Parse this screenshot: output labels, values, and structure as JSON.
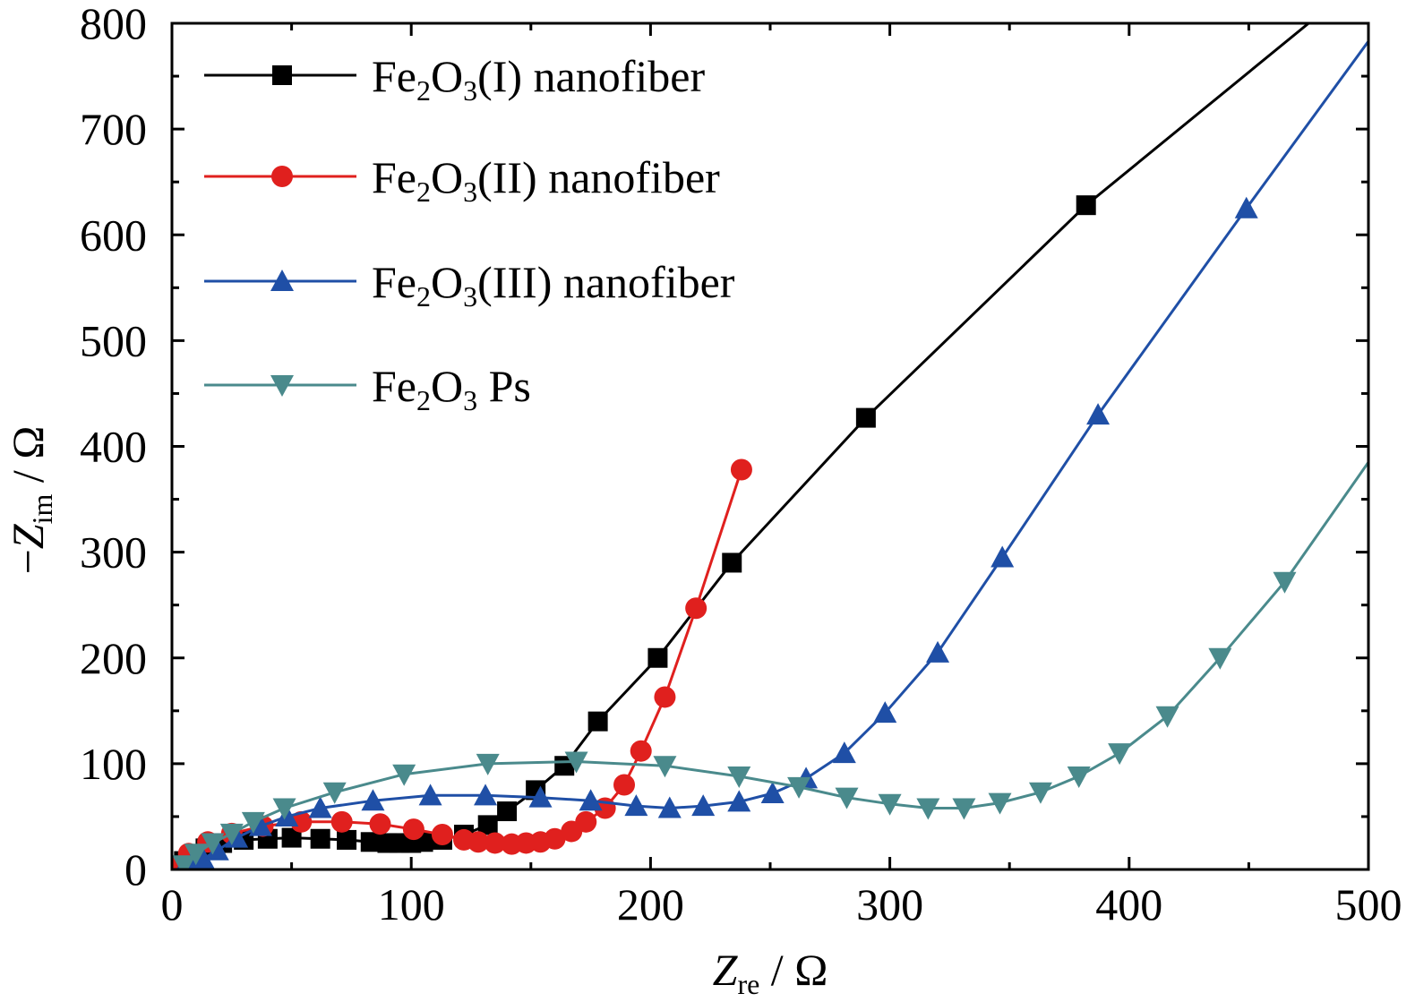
{
  "chart_data": {
    "type": "line",
    "title": "",
    "xlabel": {
      "symbol": "Z",
      "subscript": "re",
      "unit": " / Ω"
    },
    "ylabel": {
      "prefix": "−",
      "symbol": "Z",
      "subscript": "im",
      "unit": " / Ω"
    },
    "xlim": [
      0,
      500
    ],
    "ylim": [
      0,
      800
    ],
    "x_ticks": [
      0,
      100,
      200,
      300,
      400,
      500
    ],
    "y_ticks": [
      0,
      100,
      200,
      300,
      400,
      500,
      600,
      700,
      800
    ],
    "x_tick_labels": [
      "0",
      "100",
      "200",
      "300",
      "400",
      "500"
    ],
    "y_tick_labels": [
      "0",
      "100",
      "200",
      "300",
      "400",
      "500",
      "600",
      "700",
      "800"
    ],
    "grid": false,
    "legend_position": "top-left",
    "series": [
      {
        "name": "Fe2O3(I) nanofiber",
        "legend": {
          "base": "Fe",
          "sub1": "2",
          "mid": "O",
          "sub2": "3",
          "rest": "(I) nanofiber"
        },
        "color": "#000000",
        "marker": "square",
        "points": [
          [
            2,
            2
          ],
          [
            5,
            8
          ],
          [
            9,
            14
          ],
          [
            14,
            20
          ],
          [
            21,
            25
          ],
          [
            30,
            28
          ],
          [
            40,
            29
          ],
          [
            50,
            30
          ],
          [
            62,
            29
          ],
          [
            73,
            28
          ],
          [
            83,
            26
          ],
          [
            90,
            25
          ],
          [
            95,
            25
          ],
          [
            100,
            25
          ],
          [
            105,
            26
          ],
          [
            113,
            28
          ],
          [
            122,
            33
          ],
          [
            132,
            42
          ],
          [
            140,
            55
          ],
          [
            152,
            75
          ],
          [
            164,
            98
          ],
          [
            178,
            140
          ],
          [
            203,
            200
          ],
          [
            234,
            290
          ],
          [
            290,
            427
          ],
          [
            382,
            628
          ],
          [
            475,
            800
          ]
        ],
        "markers": [
          [
            2,
            2
          ],
          [
            5,
            8
          ],
          [
            9,
            14
          ],
          [
            14,
            20
          ],
          [
            21,
            25
          ],
          [
            30,
            28
          ],
          [
            40,
            29
          ],
          [
            50,
            30
          ],
          [
            62,
            29
          ],
          [
            73,
            28
          ],
          [
            83,
            26
          ],
          [
            90,
            25
          ],
          [
            95,
            25
          ],
          [
            100,
            25
          ],
          [
            105,
            26
          ],
          [
            113,
            28
          ],
          [
            122,
            33
          ],
          [
            132,
            42
          ],
          [
            140,
            55
          ],
          [
            152,
            75
          ],
          [
            164,
            98
          ],
          [
            178,
            140
          ],
          [
            203,
            200
          ],
          [
            234,
            290
          ],
          [
            290,
            427
          ],
          [
            382,
            628
          ]
        ]
      },
      {
        "name": "Fe2O3(II) nanofiber",
        "legend": {
          "base": "Fe",
          "sub1": "2",
          "mid": "O",
          "sub2": "3",
          "rest": "(II) nanofiber"
        },
        "color": "#e0201e",
        "marker": "circle",
        "points": [
          [
            2,
            2
          ],
          [
            7,
            15
          ],
          [
            15,
            26
          ],
          [
            25,
            34
          ],
          [
            38,
            41
          ],
          [
            54,
            45
          ],
          [
            71,
            45
          ],
          [
            87,
            43
          ],
          [
            101,
            38
          ],
          [
            113,
            33
          ],
          [
            122,
            28
          ],
          [
            128,
            26
          ],
          [
            135,
            25
          ],
          [
            142,
            24
          ],
          [
            148,
            25
          ],
          [
            154,
            26
          ],
          [
            160,
            29
          ],
          [
            167,
            36
          ],
          [
            173,
            45
          ],
          [
            181,
            58
          ],
          [
            189,
            80
          ],
          [
            196,
            112
          ],
          [
            206,
            163
          ],
          [
            219,
            247
          ],
          [
            238,
            378
          ]
        ],
        "markers": [
          [
            2,
            2
          ],
          [
            7,
            15
          ],
          [
            15,
            26
          ],
          [
            25,
            34
          ],
          [
            38,
            41
          ],
          [
            54,
            45
          ],
          [
            71,
            45
          ],
          [
            87,
            43
          ],
          [
            101,
            38
          ],
          [
            113,
            33
          ],
          [
            122,
            28
          ],
          [
            128,
            26
          ],
          [
            135,
            25
          ],
          [
            142,
            24
          ],
          [
            148,
            25
          ],
          [
            154,
            26
          ],
          [
            160,
            29
          ],
          [
            167,
            36
          ],
          [
            173,
            45
          ],
          [
            181,
            58
          ],
          [
            189,
            80
          ],
          [
            196,
            112
          ],
          [
            206,
            163
          ],
          [
            219,
            247
          ],
          [
            238,
            378
          ]
        ]
      },
      {
        "name": "Fe2O3(III) nanofiber",
        "legend": {
          "base": "Fe",
          "sub1": "2",
          "mid": "O",
          "sub2": "3",
          "rest": "(III) nanofiber"
        },
        "color": "#1f4fa6",
        "marker": "triangle-up",
        "points": [
          [
            5,
            2
          ],
          [
            8,
            5
          ],
          [
            13,
            10
          ],
          [
            19,
            18
          ],
          [
            27,
            30
          ],
          [
            37,
            41
          ],
          [
            48,
            50
          ],
          [
            62,
            58
          ],
          [
            84,
            65
          ],
          [
            108,
            70
          ],
          [
            131,
            70
          ],
          [
            154,
            68
          ],
          [
            175,
            65
          ],
          [
            194,
            60
          ],
          [
            208,
            58
          ],
          [
            222,
            60
          ],
          [
            237,
            64
          ],
          [
            251,
            72
          ],
          [
            265,
            86
          ],
          [
            281,
            110
          ],
          [
            298,
            148
          ],
          [
            320,
            205
          ],
          [
            347,
            295
          ],
          [
            387,
            430
          ],
          [
            449,
            625
          ],
          [
            500,
            783
          ]
        ],
        "markers": [
          [
            5,
            2
          ],
          [
            8,
            5
          ],
          [
            13,
            10
          ],
          [
            19,
            18
          ],
          [
            27,
            30
          ],
          [
            37,
            41
          ],
          [
            48,
            50
          ],
          [
            62,
            58
          ],
          [
            84,
            65
          ],
          [
            108,
            70
          ],
          [
            131,
            70
          ],
          [
            154,
            68
          ],
          [
            175,
            65
          ],
          [
            194,
            60
          ],
          [
            208,
            58
          ],
          [
            222,
            60
          ],
          [
            237,
            64
          ],
          [
            251,
            72
          ],
          [
            265,
            86
          ],
          [
            281,
            110
          ],
          [
            298,
            148
          ],
          [
            320,
            205
          ],
          [
            347,
            295
          ],
          [
            387,
            430
          ],
          [
            449,
            625
          ]
        ]
      },
      {
        "name": "Fe2O3 Ps",
        "legend": {
          "base": "Fe",
          "sub1": "2",
          "mid": "O",
          "sub2": "3",
          "rest": " Ps"
        },
        "color": "#4a8a8c",
        "marker": "triangle-down",
        "points": [
          [
            5,
            4
          ],
          [
            10,
            15
          ],
          [
            17,
            25
          ],
          [
            25,
            34
          ],
          [
            34,
            45
          ],
          [
            47,
            58
          ],
          [
            68,
            73
          ],
          [
            97,
            90
          ],
          [
            132,
            100
          ],
          [
            169,
            102
          ],
          [
            206,
            98
          ],
          [
            237,
            88
          ],
          [
            262,
            78
          ],
          [
            282,
            68
          ],
          [
            300,
            62
          ],
          [
            316,
            58
          ],
          [
            331,
            58
          ],
          [
            346,
            63
          ],
          [
            363,
            73
          ],
          [
            379,
            88
          ],
          [
            396,
            110
          ],
          [
            416,
            145
          ],
          [
            438,
            200
          ],
          [
            465,
            272
          ],
          [
            500,
            385
          ]
        ],
        "markers": [
          [
            5,
            4
          ],
          [
            10,
            15
          ],
          [
            17,
            25
          ],
          [
            25,
            34
          ],
          [
            34,
            45
          ],
          [
            47,
            58
          ],
          [
            68,
            73
          ],
          [
            97,
            90
          ],
          [
            132,
            100
          ],
          [
            169,
            102
          ],
          [
            206,
            98
          ],
          [
            237,
            88
          ],
          [
            262,
            78
          ],
          [
            282,
            68
          ],
          [
            300,
            62
          ],
          [
            316,
            58
          ],
          [
            331,
            58
          ],
          [
            346,
            63
          ],
          [
            363,
            73
          ],
          [
            379,
            88
          ],
          [
            396,
            110
          ],
          [
            416,
            145
          ],
          [
            438,
            200
          ],
          [
            465,
            272
          ]
        ]
      }
    ]
  }
}
